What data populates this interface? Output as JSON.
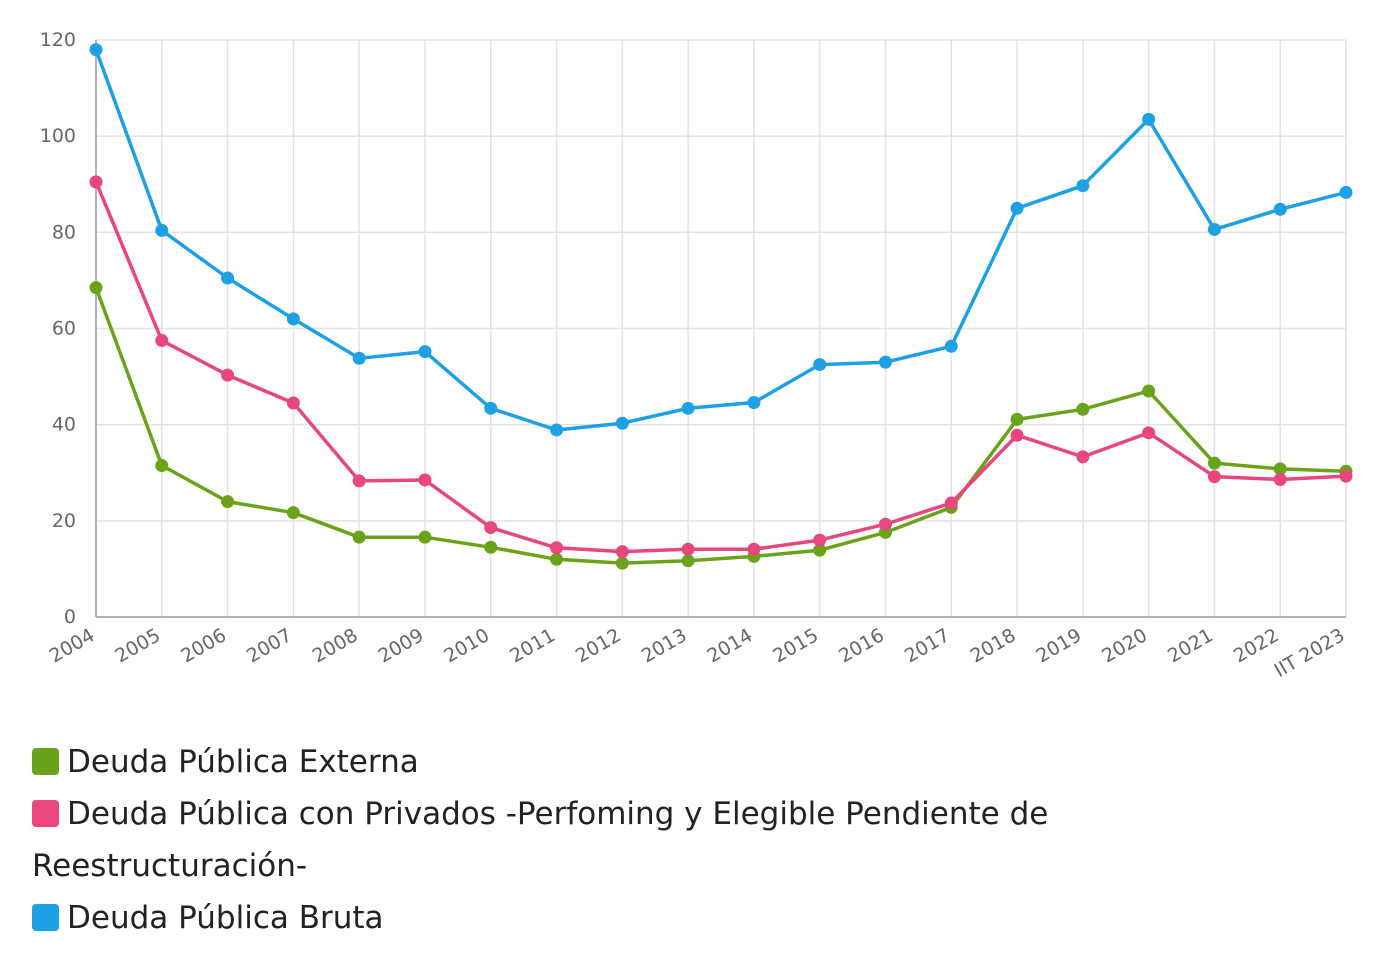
{
  "chart_data": {
    "type": "line",
    "categories": [
      "2004",
      "2005",
      "2006",
      "2007",
      "2008",
      "2009",
      "2010",
      "2011",
      "2012",
      "2013",
      "2014",
      "2015",
      "2016",
      "2017",
      "2018",
      "2019",
      "2020",
      "2021",
      "2022",
      "IIT 2023"
    ],
    "ylim": [
      0,
      120
    ],
    "yticks": [
      0,
      20,
      40,
      60,
      80,
      100,
      120
    ],
    "grid": true,
    "legend_position": "bottom",
    "series": [
      {
        "name": "Deuda Pública Externa",
        "color": "#6aa31a",
        "values": [
          68.5,
          31.5,
          24,
          21.7,
          16.6,
          16.6,
          14.5,
          12,
          11.2,
          11.7,
          12.6,
          13.9,
          17.6,
          22.8,
          41.1,
          43.2,
          47,
          32,
          30.8,
          30.3
        ]
      },
      {
        "name": "Deuda Pública con Privados -Perfoming y Elegible Pendiente de Reestructuración-",
        "color": "#e8467e",
        "values": [
          90.5,
          57.5,
          50.3,
          44.5,
          28.3,
          28.5,
          18.6,
          14.4,
          13.6,
          14.1,
          14.1,
          16,
          19.3,
          23.7,
          37.8,
          33.3,
          38.3,
          29.2,
          28.6,
          29.3
        ]
      },
      {
        "name": "Deuda Pública Bruta",
        "color": "#1ea1e4",
        "values": [
          118,
          80.4,
          70.5,
          62,
          53.8,
          55.2,
          43.4,
          38.9,
          40.3,
          43.4,
          44.6,
          52.5,
          53,
          56.3,
          85,
          89.7,
          103.5,
          80.6,
          84.8,
          88.3
        ]
      }
    ]
  }
}
